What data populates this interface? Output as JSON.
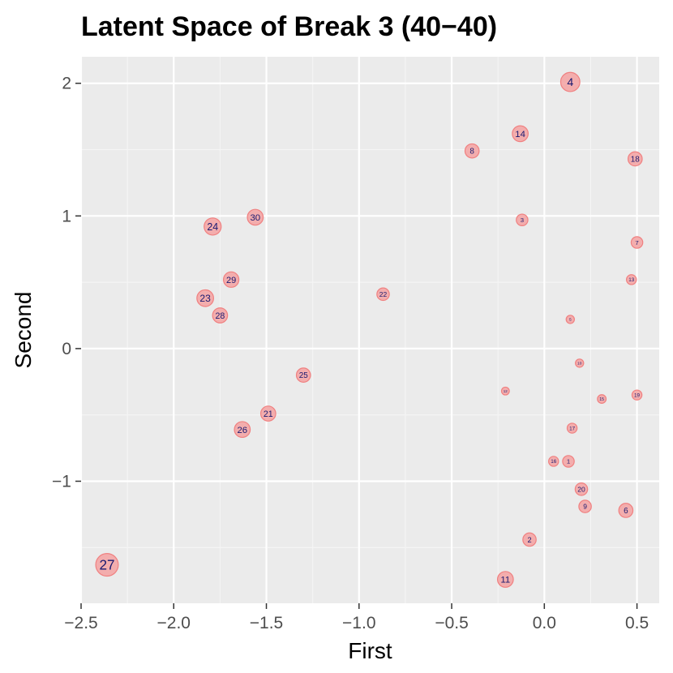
{
  "colors": {
    "panel_background": "#ebebeb",
    "grid_major": "#ffffff",
    "grid_minor": "#f5f5f5",
    "tick_label": "#4d4d4d",
    "point_fill": "#f4a6a6",
    "point_stroke": "#f08080",
    "point_label": "#191970"
  },
  "chart_data": {
    "type": "scatter",
    "title": "Latent Space of Break 3 (40−40)",
    "xlabel": "First",
    "ylabel": "Second",
    "xlim": [
      -2.5,
      0.62
    ],
    "ylim": [
      -1.92,
      2.2
    ],
    "x_ticks": [
      {
        "value": -2.5,
        "label": "−2.5"
      },
      {
        "value": -2.0,
        "label": "−2.0"
      },
      {
        "value": -1.5,
        "label": "−1.5"
      },
      {
        "value": -1.0,
        "label": "−1.0"
      },
      {
        "value": -0.5,
        "label": "−0.5"
      },
      {
        "value": 0.0,
        "label": "0.0"
      },
      {
        "value": 0.5,
        "label": "0.5"
      }
    ],
    "y_ticks": [
      {
        "value": -1,
        "label": "−1"
      },
      {
        "value": 0,
        "label": "0"
      },
      {
        "value": 1,
        "label": "1"
      },
      {
        "value": 2,
        "label": "2"
      }
    ],
    "grid": true,
    "legend": "none",
    "points": [
      {
        "label": "1",
        "x": 0.13,
        "y": -0.85,
        "size": 0.8
      },
      {
        "label": "2",
        "x": -0.08,
        "y": -1.44,
        "size": 1.0
      },
      {
        "label": "3",
        "x": -0.12,
        "y": 0.97,
        "size": 0.8
      },
      {
        "label": "4",
        "x": 0.14,
        "y": 2.01,
        "size": 1.7
      },
      {
        "label": "5",
        "x": 0.14,
        "y": 0.22,
        "size": 0.4
      },
      {
        "label": "6",
        "x": 0.44,
        "y": -1.22,
        "size": 1.1
      },
      {
        "label": "7",
        "x": 0.5,
        "y": 0.8,
        "size": 0.8
      },
      {
        "label": "8",
        "x": -0.39,
        "y": 1.49,
        "size": 1.1
      },
      {
        "label": "9",
        "x": 0.22,
        "y": -1.19,
        "size": 0.9
      },
      {
        "label": "10",
        "x": 0.19,
        "y": -0.11,
        "size": 0.4
      },
      {
        "label": "11",
        "x": -0.21,
        "y": -1.74,
        "size": 1.3
      },
      {
        "label": "12",
        "x": -0.21,
        "y": -0.32,
        "size": 0.35
      },
      {
        "label": "13",
        "x": 0.47,
        "y": 0.52,
        "size": 0.6
      },
      {
        "label": "14",
        "x": -0.13,
        "y": 1.62,
        "size": 1.3
      },
      {
        "label": "15",
        "x": 0.31,
        "y": -0.38,
        "size": 0.45
      },
      {
        "label": "16",
        "x": 0.05,
        "y": -0.85,
        "size": 0.6
      },
      {
        "label": "17",
        "x": 0.15,
        "y": -0.6,
        "size": 0.6
      },
      {
        "label": "18",
        "x": 0.49,
        "y": 1.43,
        "size": 1.1
      },
      {
        "label": "19",
        "x": 0.5,
        "y": -0.35,
        "size": 0.6
      },
      {
        "label": "20",
        "x": 0.2,
        "y": -1.06,
        "size": 0.9
      },
      {
        "label": "21",
        "x": -1.49,
        "y": -0.49,
        "size": 1.2
      },
      {
        "label": "22",
        "x": -0.87,
        "y": 0.41,
        "size": 0.9
      },
      {
        "label": "23",
        "x": -1.83,
        "y": 0.38,
        "size": 1.4
      },
      {
        "label": "24",
        "x": -1.79,
        "y": 0.92,
        "size": 1.45
      },
      {
        "label": "25",
        "x": -1.3,
        "y": -0.2,
        "size": 1.1
      },
      {
        "label": "26",
        "x": -1.63,
        "y": -0.61,
        "size": 1.3
      },
      {
        "label": "27",
        "x": -2.36,
        "y": -1.63,
        "size": 2.1
      },
      {
        "label": "28",
        "x": -1.75,
        "y": 0.25,
        "size": 1.2
      },
      {
        "label": "29",
        "x": -1.69,
        "y": 0.52,
        "size": 1.25
      },
      {
        "label": "30",
        "x": -1.56,
        "y": 0.99,
        "size": 1.3
      }
    ]
  }
}
